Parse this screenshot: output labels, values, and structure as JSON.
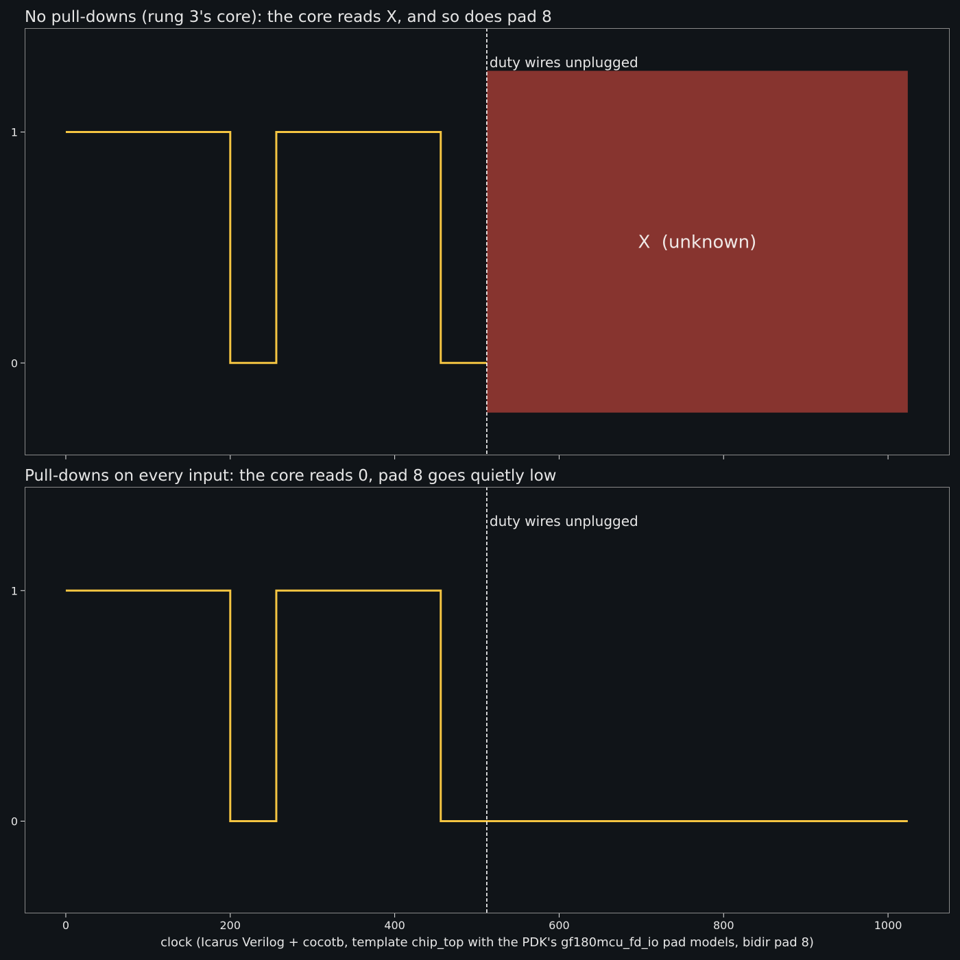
{
  "colors": {
    "background": "#101418",
    "signal": "#f5c542",
    "x_region": "#87342f",
    "frame": "#8a8a8a",
    "text": "#e6e6e6",
    "marker": "#ffffff"
  },
  "chart_data": [
    {
      "type": "line",
      "step": "post",
      "title": "No pull-downs (rung 3's core): the core reads X, and so does pad 8",
      "xlim": [
        -50,
        1075
      ],
      "ylim": [
        -0.4,
        1.45
      ],
      "yticks": [
        0,
        1
      ],
      "xticks": [
        0,
        200,
        400,
        600,
        800,
        1000
      ],
      "show_xtick_labels": false,
      "grid": false,
      "series": [
        {
          "x": [
            0,
            200,
            256,
            456,
            512
          ],
          "y": [
            1,
            0,
            1,
            0,
            0
          ]
        }
      ],
      "marker_x": 512,
      "marker_label": "duty wires unplugged",
      "x_region": {
        "x": [
          512,
          1024
        ],
        "y": [
          -0.215,
          1.265
        ],
        "label": "X  (unknown)"
      }
    },
    {
      "type": "line",
      "step": "post",
      "title": "Pull-downs on every input: the core reads 0, pad 8 goes quietly low",
      "xlabel": "clock  (Icarus Verilog + cocotb, template chip_top with the PDK's gf180mcu_fd_io pad models, bidir pad 8)",
      "xlim": [
        -50,
        1075
      ],
      "ylim": [
        -0.4,
        1.45
      ],
      "yticks": [
        0,
        1
      ],
      "xticks": [
        0,
        200,
        400,
        600,
        800,
        1000
      ],
      "show_xtick_labels": true,
      "grid": false,
      "series": [
        {
          "x": [
            0,
            200,
            256,
            456,
            1024
          ],
          "y": [
            1,
            0,
            1,
            0,
            0
          ]
        }
      ],
      "marker_x": 512,
      "marker_label": "duty wires unplugged"
    }
  ]
}
